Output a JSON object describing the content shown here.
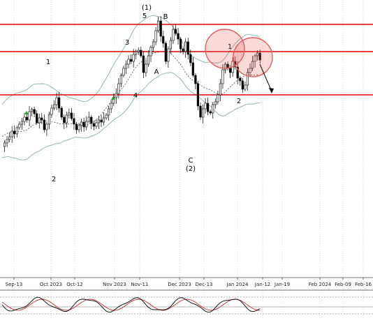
{
  "chart_data": {
    "type": "candlestick",
    "x_ticks": [
      "Sep-13",
      "Oct 2023",
      "Oct-12",
      "Nov 2023",
      "Nov-11",
      "Dec 2023",
      "Dec-13",
      "Jan 2024",
      "Jan-12",
      "Jan-19",
      "Feb 2024",
      "Feb-09",
      "Feb-16"
    ],
    "wave_labels": [
      "1",
      "2",
      "3",
      "4",
      "(1)",
      "5",
      "A",
      "B",
      "C",
      "(2)",
      "1",
      "2"
    ],
    "resistance_levels": [
      "upper",
      "middle",
      "lower"
    ],
    "grid": true,
    "colors": {
      "bull_candle": "#ffffff",
      "bear_candle": "#000000",
      "resistance_line": "#e00000",
      "bollinger_band": "#8fb8a8",
      "circle": "#e06060",
      "oscillator_k": "#000000",
      "oscillator_d": "#c03030"
    },
    "indicators": [
      "Bollinger Bands",
      "Stochastic oscillator"
    ],
    "annotations": [
      "forecast-arrow-down",
      "circled-highs"
    ]
  }
}
